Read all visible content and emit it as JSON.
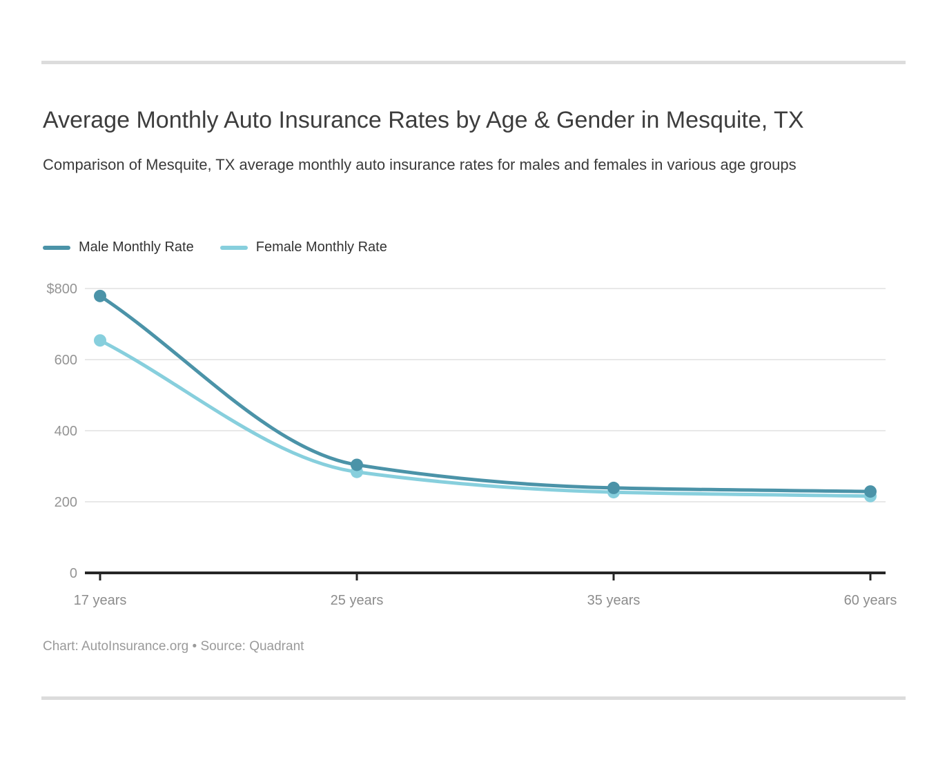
{
  "header": {
    "title": "Average Monthly Auto Insurance Rates by Age & Gender in Mesquite, TX",
    "subtitle": "Comparison of Mesquite, TX average monthly auto insurance rates for males and females in various age groups"
  },
  "chart_data": {
    "type": "line",
    "title": "Average Monthly Auto Insurance Rates by Age & Gender in Mesquite, TX",
    "categories": [
      "17 years",
      "25 years",
      "35 years",
      "60 years"
    ],
    "series": [
      {
        "name": "Male Monthly Rate",
        "color": "#4b93a8",
        "values": [
          779,
          304,
          239,
          229
        ]
      },
      {
        "name": "Female Monthly Rate",
        "color": "#87cfdd",
        "values": [
          654,
          284,
          227,
          216
        ]
      }
    ],
    "xlabel": "",
    "ylabel": "",
    "ylim": [
      0,
      800
    ],
    "yticks": [
      {
        "value": 800,
        "label": "$800"
      },
      {
        "value": 600,
        "label": "600"
      },
      {
        "value": 400,
        "label": "400"
      },
      {
        "value": 200,
        "label": "200"
      },
      {
        "value": 0,
        "label": "0"
      }
    ],
    "grid": true,
    "legend_position": "top-left"
  },
  "footer": {
    "attribution": "Chart: AutoInsurance.org • Source: Quadrant"
  },
  "colors": {
    "male_series": "#4b93a8",
    "female_series": "#87cfdd",
    "grid_line": "#e8e8e8",
    "axis_line": "#262626",
    "y_tick_text": "#949494",
    "x_tick_text": "#8c8c8c",
    "title_text": "#3d3d3d",
    "subtitle_text": "#3a3a3a",
    "legend_text": "#333333",
    "footer_text": "#9a9a9a",
    "divider": "#dcdcdc"
  }
}
